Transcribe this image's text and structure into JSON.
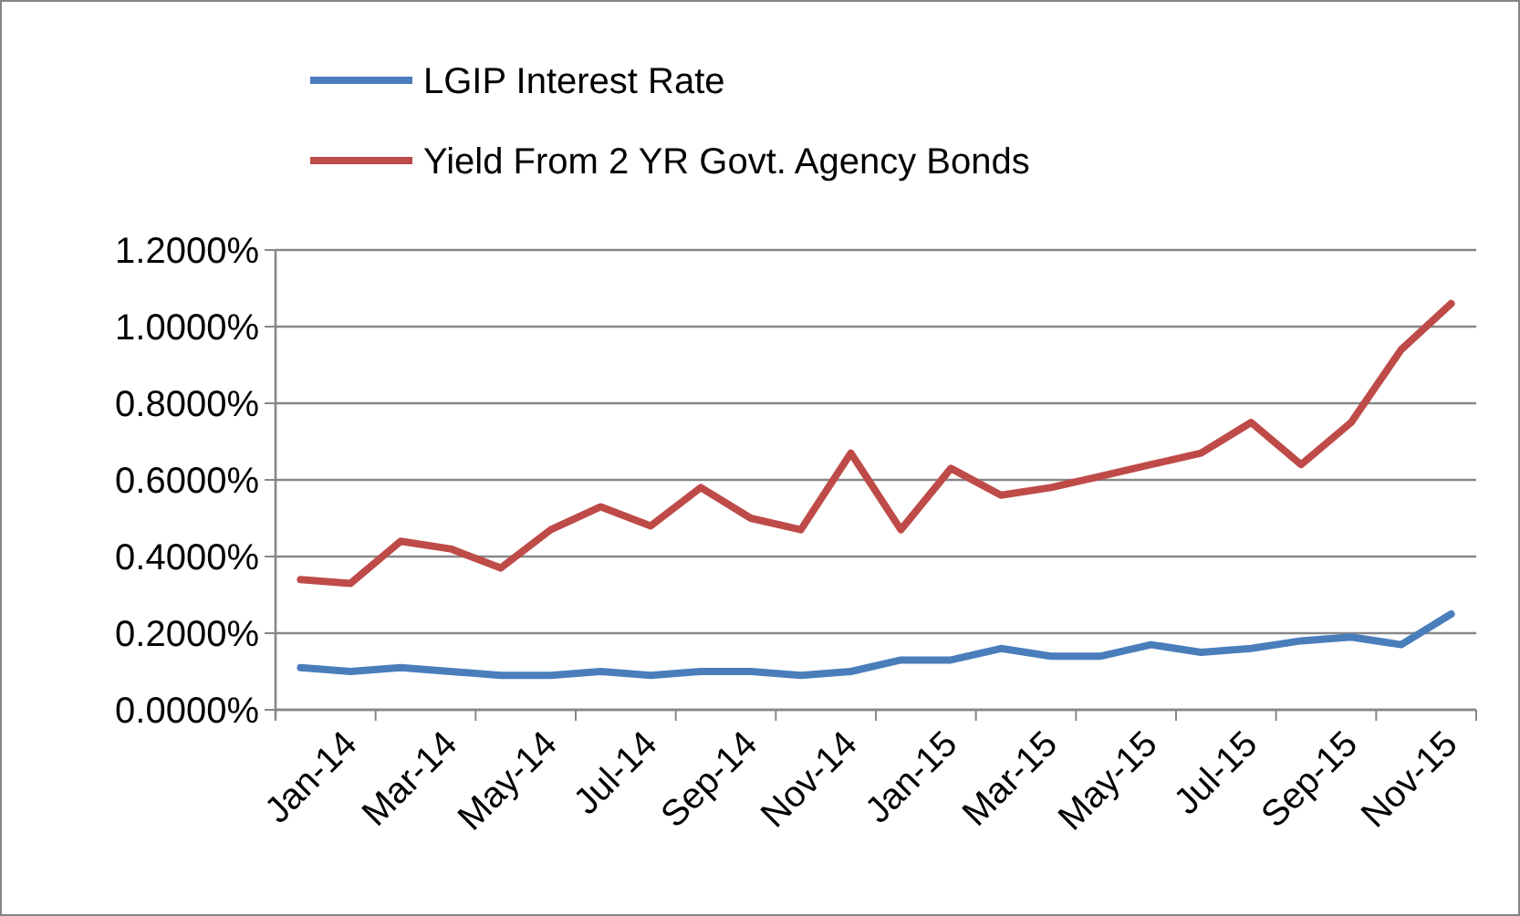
{
  "chart_data": {
    "type": "line",
    "categories": [
      "Jan-14",
      null,
      "Mar-14",
      null,
      "May-14",
      null,
      "Jul-14",
      null,
      "Sep-14",
      null,
      "Nov-14",
      null,
      "Jan-15",
      null,
      "Mar-15",
      null,
      "May-15",
      null,
      "Jul-15",
      null,
      "Sep-15",
      null,
      "Nov-15",
      null
    ],
    "series": [
      {
        "name": "LGIP Interest Rate",
        "color": "#4a7ebb",
        "values": [
          0.11,
          0.1,
          0.11,
          0.1,
          0.09,
          0.09,
          0.1,
          0.09,
          0.1,
          0.1,
          0.09,
          0.1,
          0.13,
          0.13,
          0.16,
          0.14,
          0.14,
          0.17,
          0.15,
          0.16,
          0.18,
          0.19,
          0.17,
          0.25
        ]
      },
      {
        "name": "Yield From 2 YR Govt. Agency Bonds",
        "color": "#be4b48",
        "values": [
          0.34,
          0.33,
          0.44,
          0.42,
          0.37,
          0.47,
          0.53,
          0.48,
          0.58,
          0.5,
          0.47,
          0.67,
          0.47,
          0.63,
          0.56,
          0.58,
          0.61,
          0.64,
          0.67,
          0.75,
          0.64,
          0.75,
          0.94,
          1.06
        ]
      }
    ],
    "ylim": [
      0,
      1.2
    ],
    "yticks": [
      {
        "value": 0,
        "label": "0.0000%"
      },
      {
        "value": 0.2,
        "label": "0.2000%"
      },
      {
        "value": 0.4,
        "label": "0.4000%"
      },
      {
        "value": 0.6,
        "label": "0.6000%"
      },
      {
        "value": 0.8,
        "label": "0.8000%"
      },
      {
        "value": 1.0,
        "label": "1.0000%"
      },
      {
        "value": 1.2,
        "label": "1.2000%"
      }
    ],
    "grid": "y",
    "legend": "top left",
    "marker": "none",
    "line_style": "solid"
  }
}
